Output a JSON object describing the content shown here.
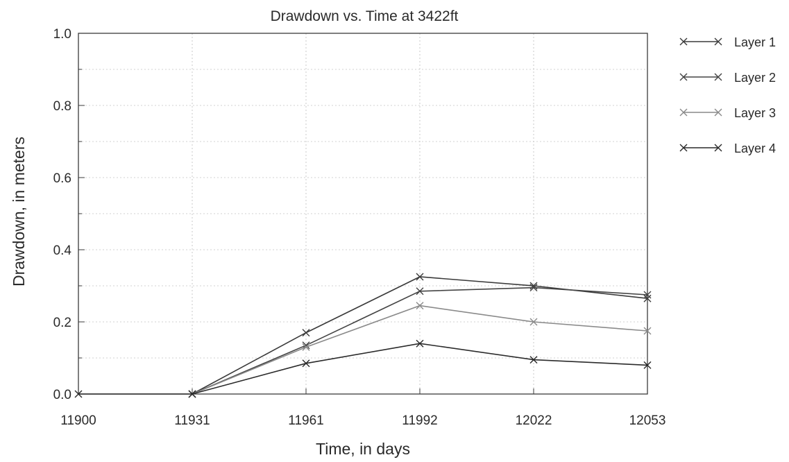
{
  "chart_data": {
    "type": "line",
    "title": "Drawdown vs. Time at 3422ft",
    "xlabel": "Time, in days",
    "ylabel": "Drawdown, in meters",
    "x_ticks": [
      "11900",
      "11931",
      "11961",
      "11992",
      "12022",
      "12053"
    ],
    "y_ticks": [
      "0.0",
      "0.2",
      "0.4",
      "0.6",
      "0.8",
      "1.0"
    ],
    "xlim": [
      11900,
      12053
    ],
    "ylim": [
      0.0,
      1.0
    ],
    "grid": true,
    "legend_position": "right",
    "series": [
      {
        "name": "Layer 1",
        "x": [
          11931,
          11961,
          11992,
          12022,
          12053
        ],
        "values": [
          0.0,
          0.17,
          0.325,
          0.3,
          0.265
        ],
        "color": "#3a3a3a"
      },
      {
        "name": "Layer 2",
        "x": [
          11931,
          11961,
          11992,
          12022,
          12053
        ],
        "values": [
          0.0,
          0.135,
          0.285,
          0.295,
          0.275
        ],
        "color": "#444444"
      },
      {
        "name": "Layer 3",
        "x": [
          11931,
          11961,
          11992,
          12022,
          12053
        ],
        "values": [
          0.0,
          0.13,
          0.245,
          0.2,
          0.175
        ],
        "color": "#8a8a8a"
      },
      {
        "name": "Layer 4",
        "x": [
          11900,
          11931,
          11961,
          11992,
          12022,
          12053
        ],
        "values": [
          0.0,
          0.0,
          0.085,
          0.14,
          0.095,
          0.08
        ],
        "color": "#2a2a2a"
      }
    ]
  }
}
